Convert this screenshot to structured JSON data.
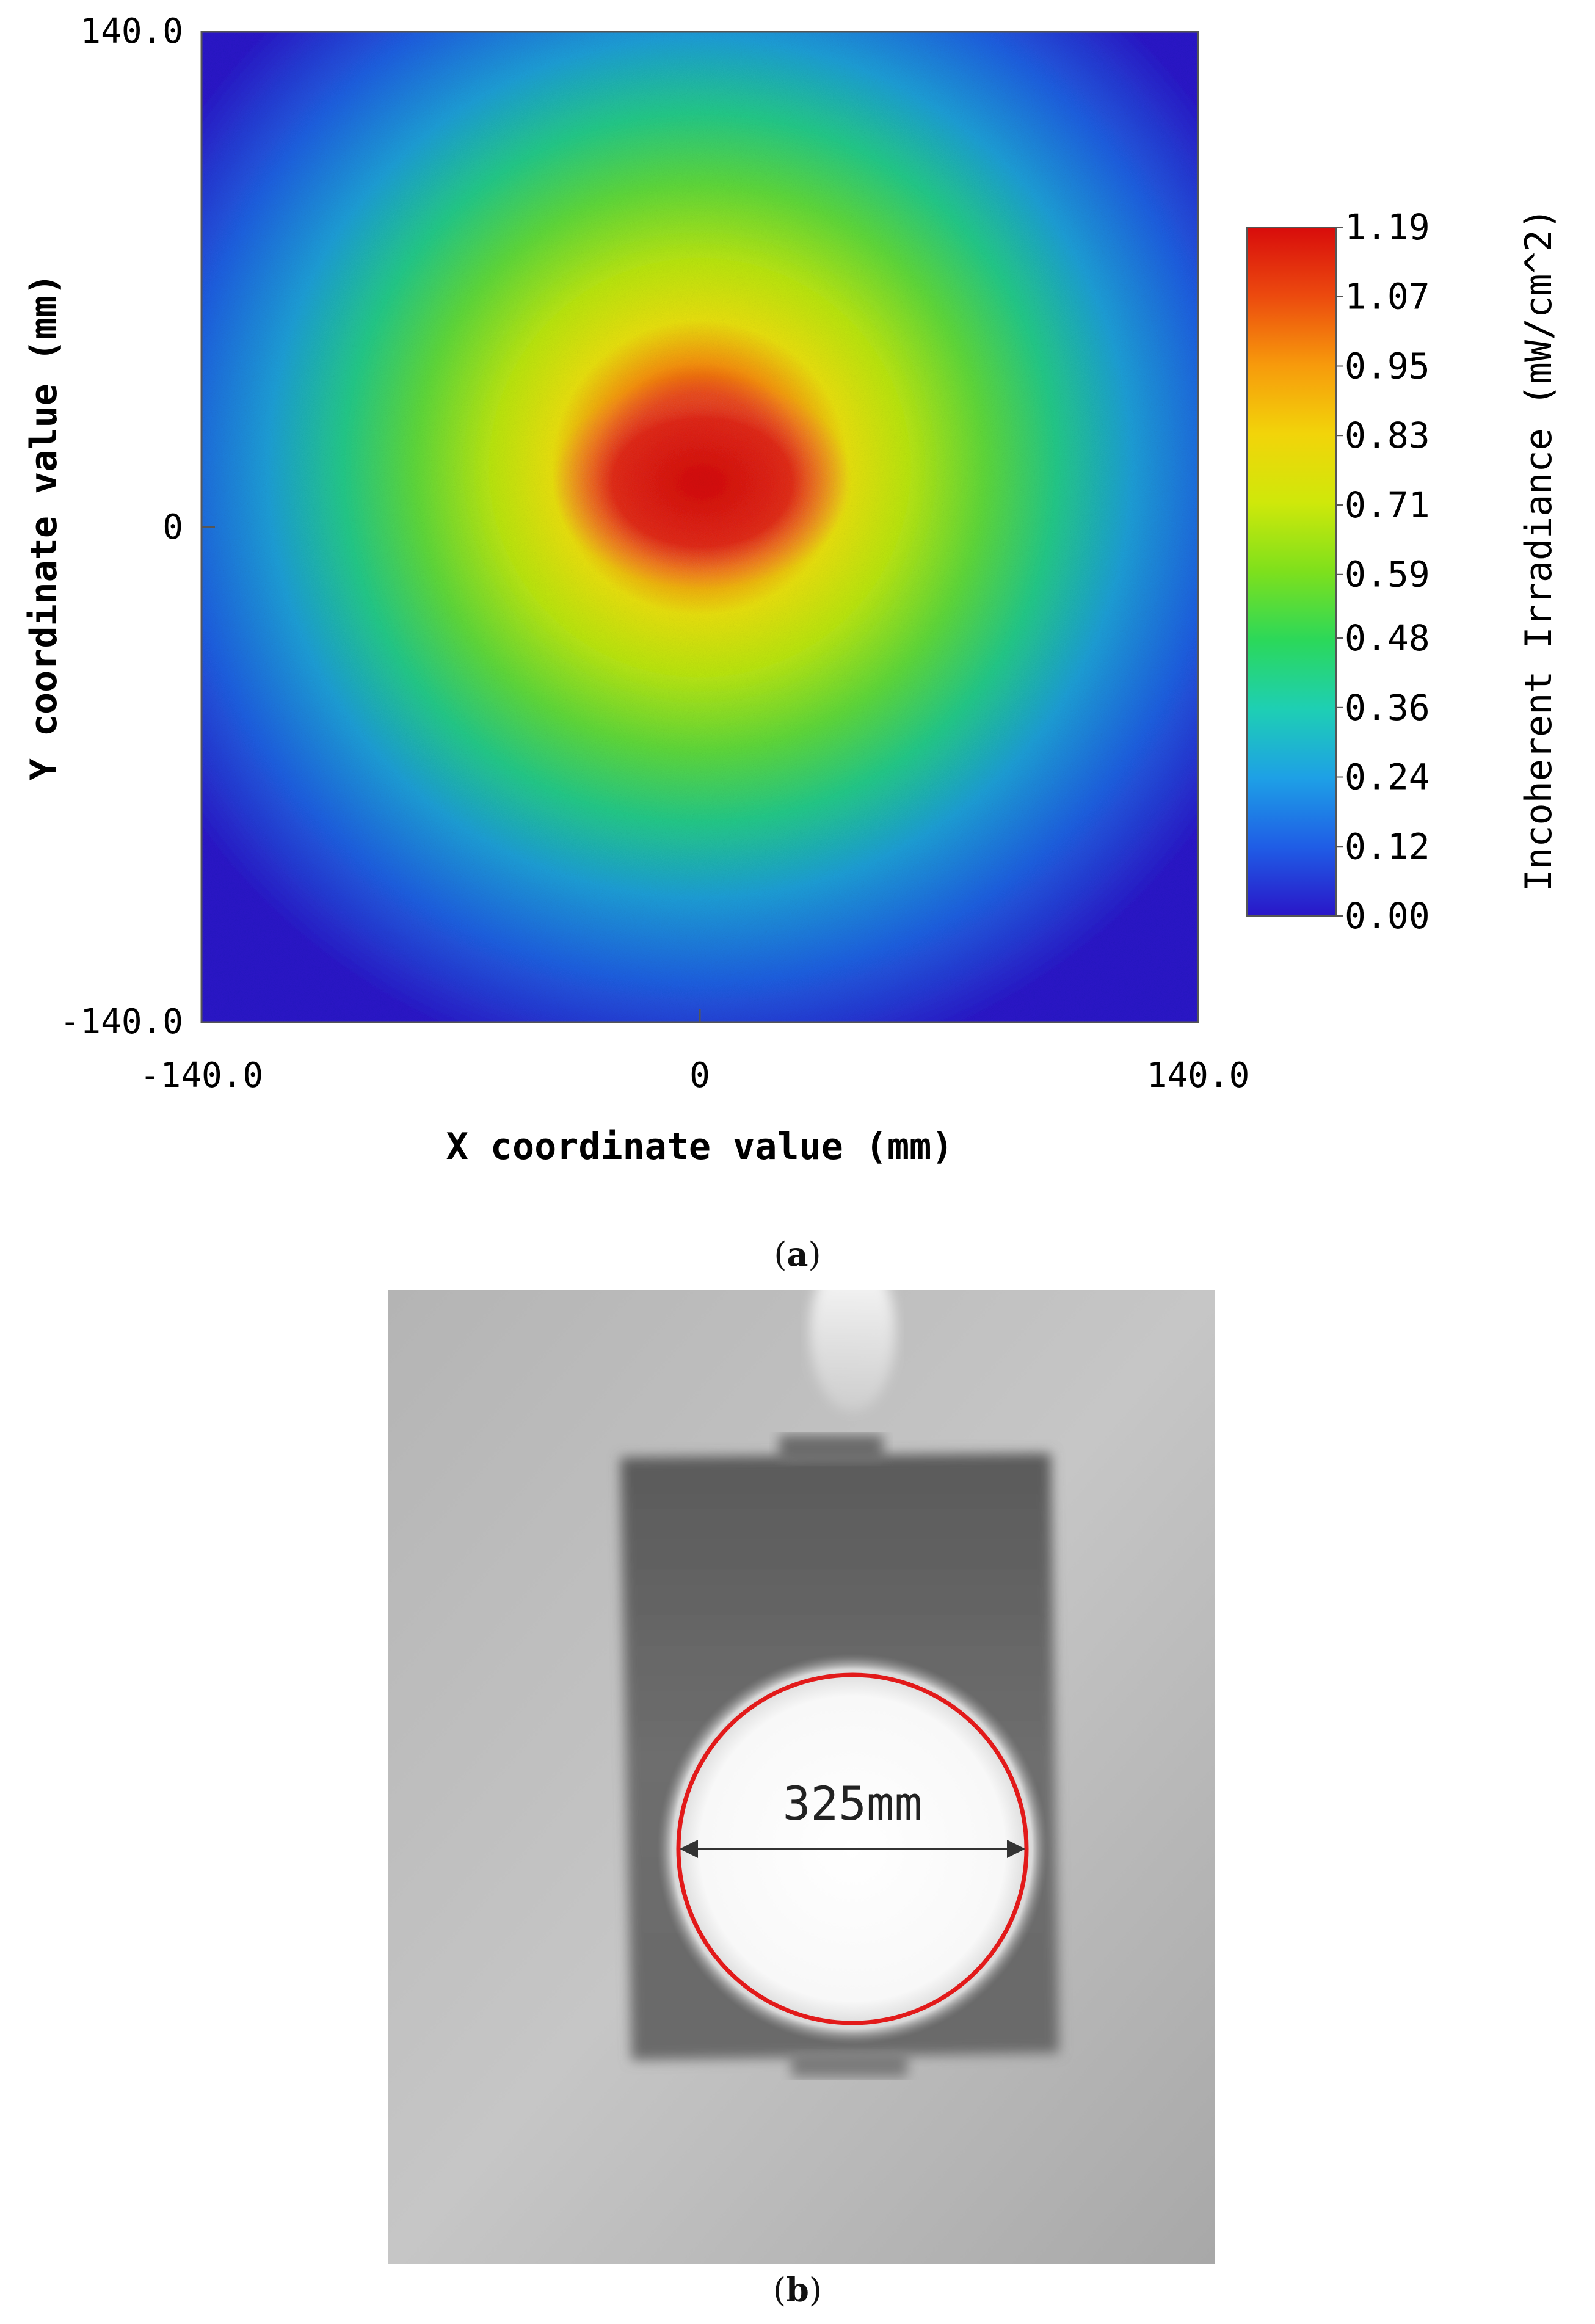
{
  "chart_data": {
    "type": "heatmap",
    "xlabel": "X coordinate value (mm)",
    "ylabel": "Y coordinate value (mm)",
    "xlim": [
      -140.0,
      140.0
    ],
    "ylim": [
      -140.0,
      140.0
    ],
    "xticks": [
      "-140.0",
      "0",
      "140.0"
    ],
    "yticks": [
      "140.0",
      "0",
      "-140.0"
    ],
    "colorbar": {
      "label": "Incoherent Irradiance (mW/cm^2)",
      "range": [
        0.0,
        1.19
      ],
      "ticks": [
        "1.19",
        "1.07",
        "0.95",
        "0.83",
        "0.71",
        "0.59",
        "0.48",
        "0.36",
        "0.24",
        "0.12",
        "0.00"
      ]
    },
    "peak": {
      "x": 0,
      "y": 10,
      "value": 1.19
    },
    "colormap": [
      "#2a16c8",
      "#1f5de6",
      "#1ea0e6",
      "#1ecfb4",
      "#2bd85a",
      "#7ee01c",
      "#cfe80a",
      "#f2d40a",
      "#f79a0c",
      "#ec4a0e",
      "#d80c0c"
    ]
  },
  "captions": {
    "a_open": "(",
    "a_letter": "a",
    "a_close": ")",
    "b_open": "(",
    "b_letter": "b",
    "b_close": ")"
  },
  "photo": {
    "dimension_label": "325mm"
  }
}
